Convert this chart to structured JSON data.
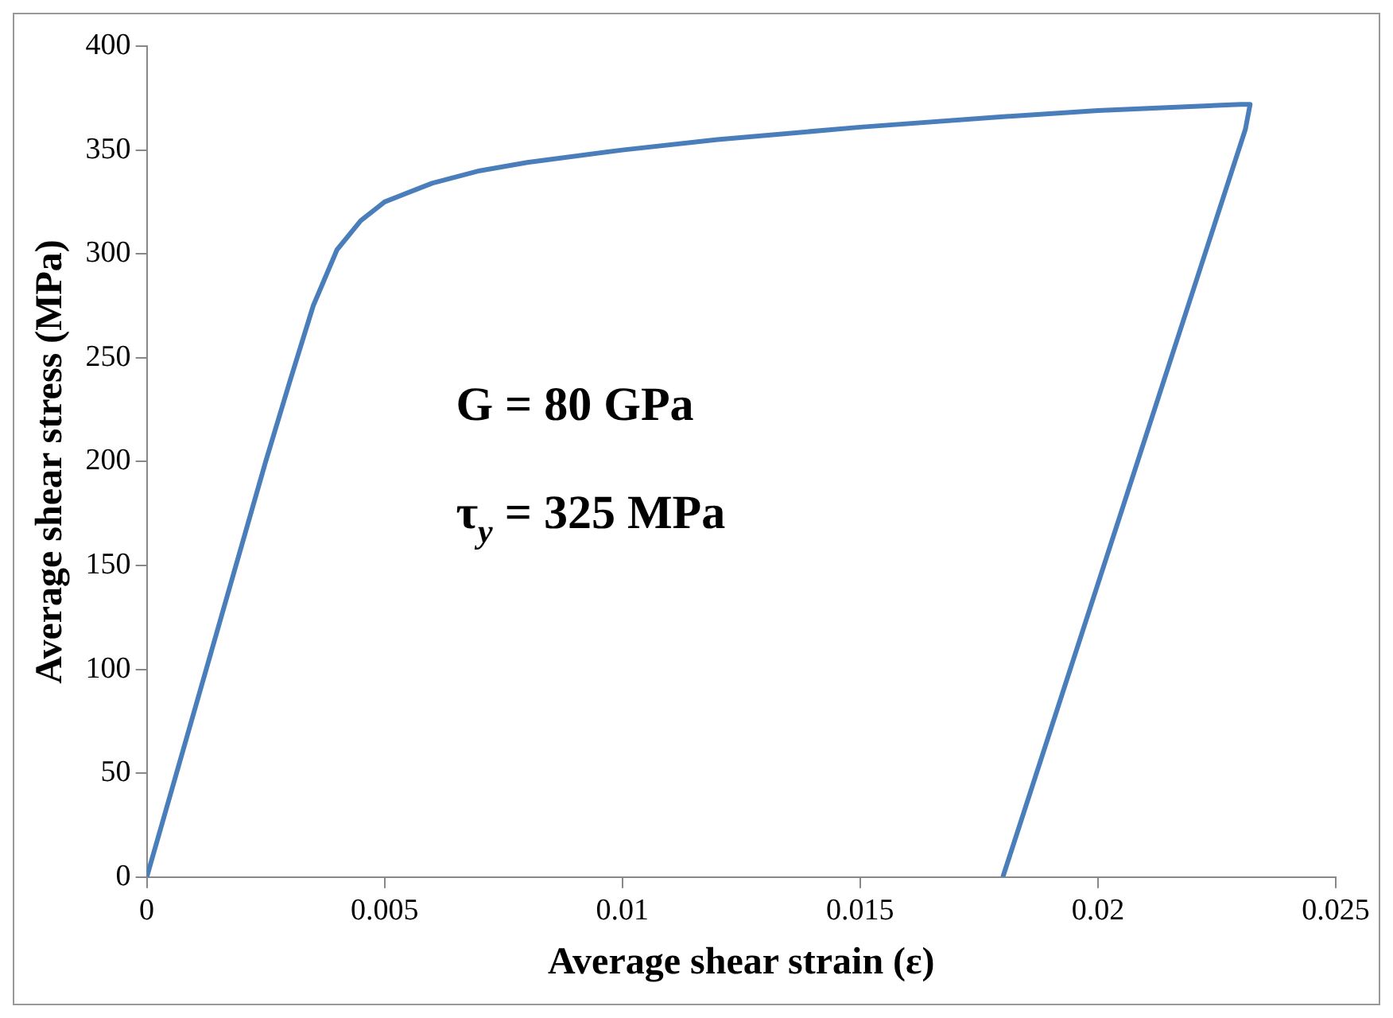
{
  "chart_data": {
    "type": "line",
    "xlabel": "Average shear strain (ε)",
    "ylabel": "Average shear stress (MPa)",
    "annotations": [
      "G = 80 GPa",
      "τ$_{y}$ = 325 MPa"
    ],
    "series": [
      {
        "color": "#4a7ebb",
        "x": [
          0,
          0.0025,
          0.003,
          0.0035,
          0.004,
          0.0045,
          0.005,
          0.006,
          0.007,
          0.008,
          0.01,
          0.012,
          0.015,
          0.018,
          0.02,
          0.023,
          0.0232,
          0.0231,
          0.018
        ],
        "values": [
          0,
          200,
          238,
          275,
          302,
          316,
          325,
          334,
          340,
          344,
          350,
          355,
          361,
          366,
          369,
          372,
          372,
          360,
          0
        ]
      }
    ],
    "xlim": [
      0,
      0.025
    ],
    "xticks": [
      0,
      0.005,
      0.01,
      0.015,
      0.02,
      0.025
    ],
    "ylim": [
      0,
      400
    ],
    "yticks": [
      0,
      50,
      100,
      150,
      200,
      250,
      300,
      350,
      400
    ],
    "grid": false,
    "legend": false,
    "marker": "none",
    "line_style": "solid"
  }
}
